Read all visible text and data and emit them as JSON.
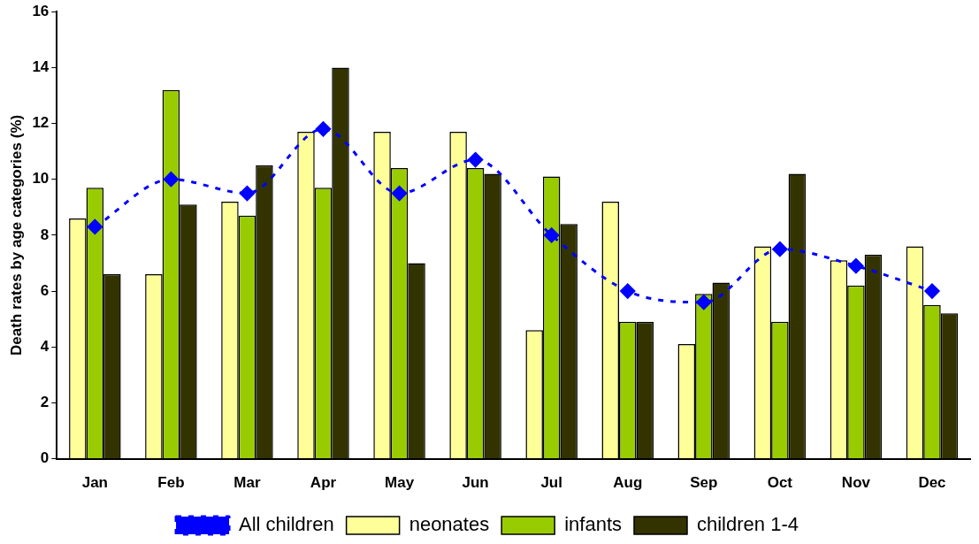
{
  "chart_data": {
    "type": "bar",
    "ylabel": "Death rates by age categories (%)",
    "categories": [
      "Jan",
      "Feb",
      "Mar",
      "Apr",
      "May",
      "Jun",
      "Jul",
      "Aug",
      "Sep",
      "Oct",
      "Nov",
      "Dec"
    ],
    "series": [
      {
        "name": "neonates",
        "color": "#ffff99",
        "values": [
          8.6,
          6.6,
          9.2,
          11.7,
          11.7,
          11.7,
          4.6,
          9.2,
          4.1,
          7.6,
          7.1,
          7.6
        ]
      },
      {
        "name": "infants",
        "color": "#99cc00",
        "values": [
          9.7,
          13.2,
          8.7,
          9.7,
          10.4,
          10.4,
          10.1,
          4.9,
          5.9,
          4.9,
          6.2,
          5.5
        ]
      },
      {
        "name": "children 1-4",
        "color": "#333300",
        "values": [
          6.6,
          9.1,
          10.5,
          14.0,
          7.0,
          10.2,
          8.4,
          4.9,
          6.3,
          10.2,
          7.3,
          5.2
        ]
      },
      {
        "name": "All children",
        "type": "line",
        "color": "#0000ff",
        "marker": "diamond",
        "line_style": "dashed",
        "values": [
          8.3,
          10.0,
          9.5,
          11.8,
          9.5,
          10.7,
          8.0,
          6.0,
          5.6,
          7.5,
          6.9,
          6.0
        ]
      }
    ],
    "ylim": [
      0,
      16
    ],
    "yticks": [
      0,
      2,
      4,
      6,
      8,
      10,
      12,
      14,
      16
    ],
    "grid": false,
    "legend": "bottom"
  }
}
